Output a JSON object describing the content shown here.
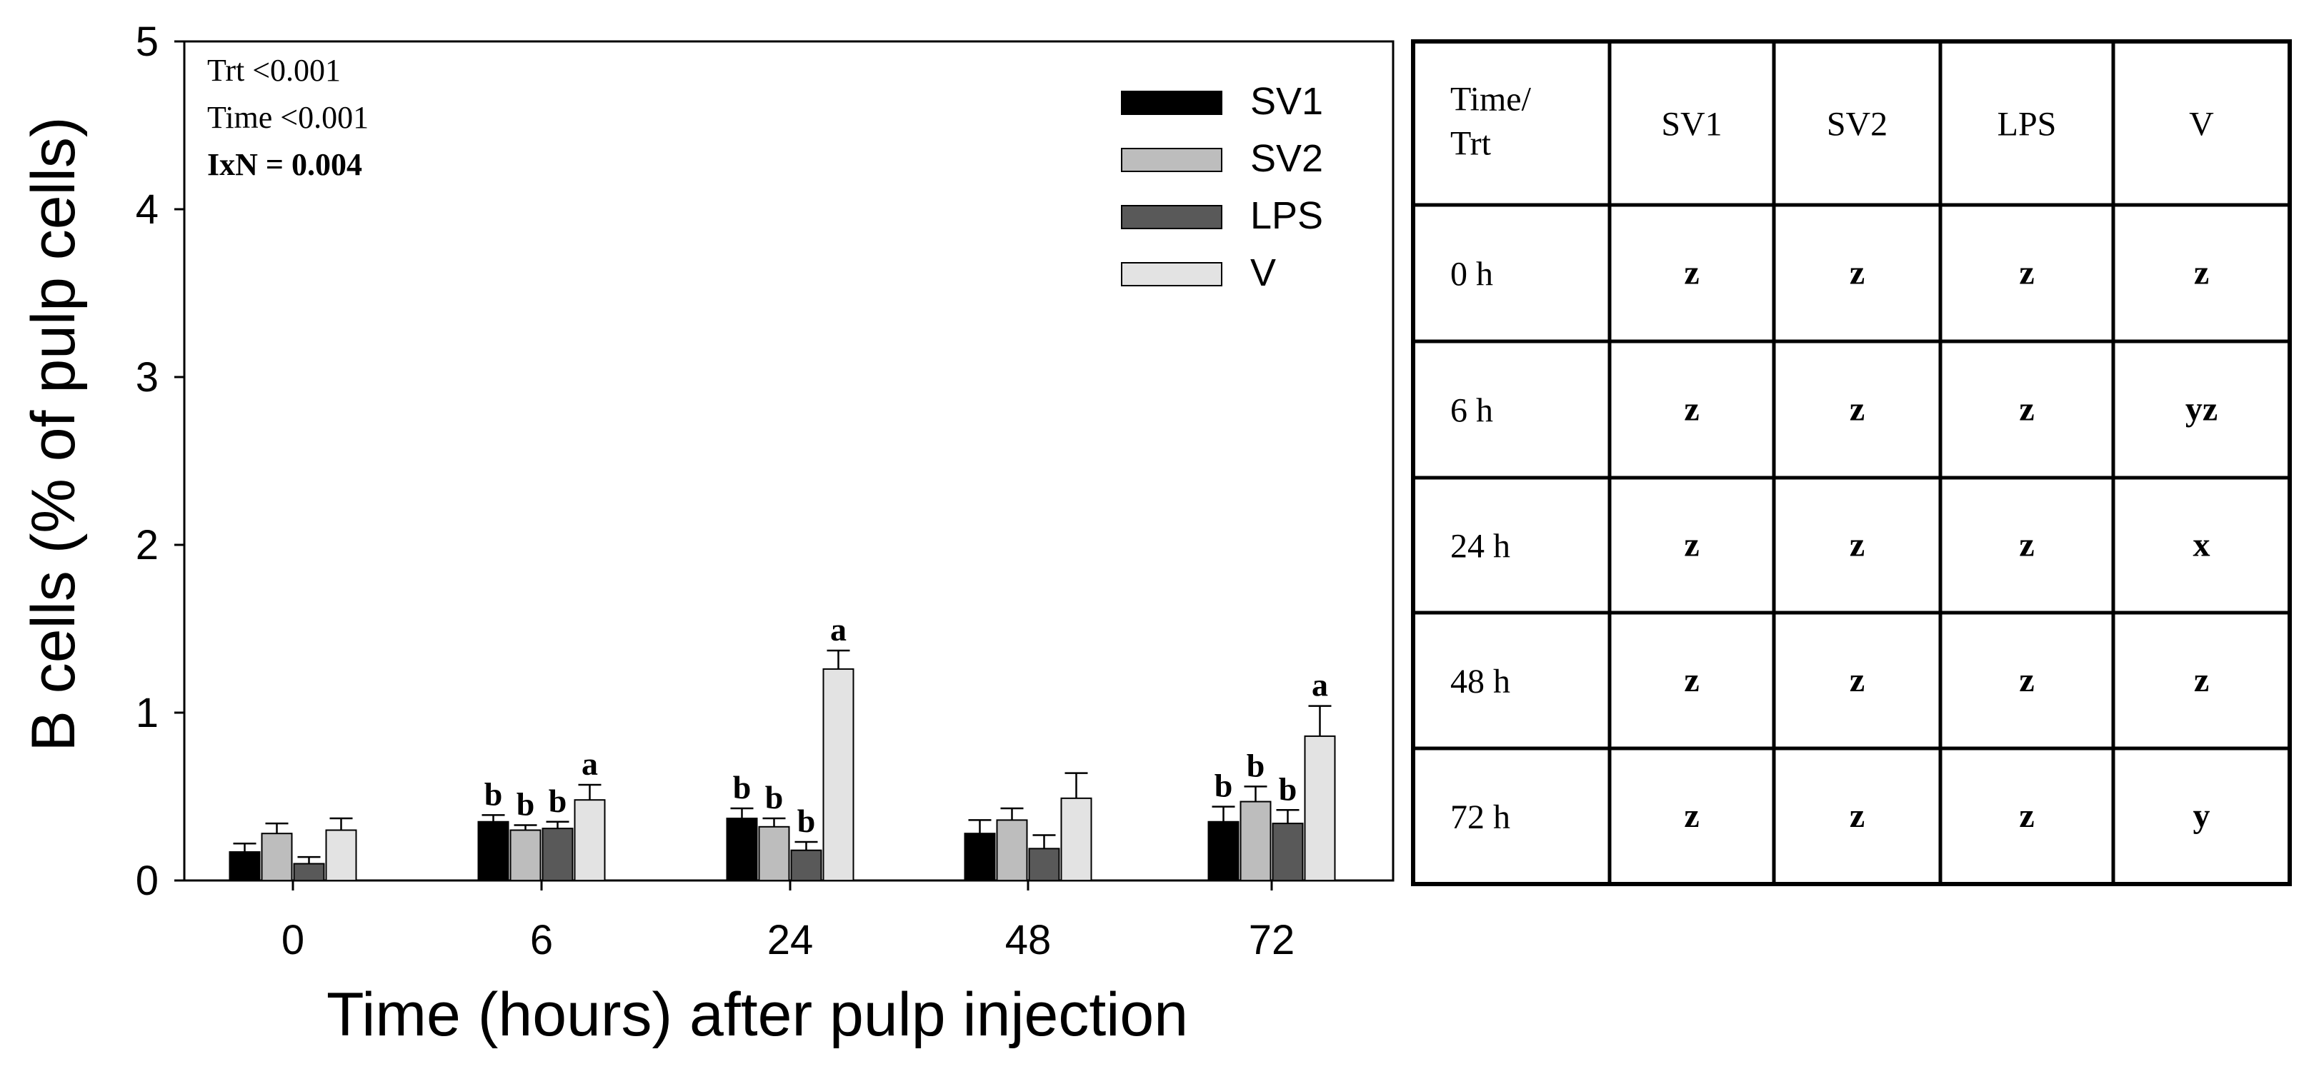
{
  "chart_data": {
    "type": "bar",
    "xlabel": "Time (hours) after pulp injection",
    "ylabel": "B cells (% of pulp cells)",
    "ylim": [
      0,
      5
    ],
    "yticks": [
      "0",
      "1",
      "2",
      "3",
      "4",
      "5"
    ],
    "categories": [
      "0",
      "6",
      "24",
      "48",
      "72"
    ],
    "series": [
      {
        "name": "SV1",
        "color": "#000000",
        "values": [
          0.17,
          0.35,
          0.37,
          0.28,
          0.35
        ],
        "errors": [
          0.05,
          0.04,
          0.06,
          0.08,
          0.09
        ],
        "letters": [
          "",
          "b",
          "b",
          "",
          "b"
        ]
      },
      {
        "name": "SV2",
        "color": "#bdbdbd",
        "values": [
          0.28,
          0.3,
          0.32,
          0.36,
          0.47
        ],
        "errors": [
          0.06,
          0.03,
          0.05,
          0.07,
          0.09
        ],
        "letters": [
          "",
          "b",
          "b",
          "",
          "b"
        ]
      },
      {
        "name": "LPS",
        "color": "#595959",
        "values": [
          0.1,
          0.31,
          0.18,
          0.19,
          0.34
        ],
        "errors": [
          0.04,
          0.04,
          0.05,
          0.08,
          0.08
        ],
        "letters": [
          "",
          "b",
          "b",
          "",
          "b"
        ]
      },
      {
        "name": "V",
        "color": "#e3e3e3",
        "values": [
          0.3,
          0.48,
          1.26,
          0.49,
          0.86
        ],
        "errors": [
          0.07,
          0.09,
          0.11,
          0.15,
          0.18
        ],
        "letters": [
          "",
          "a",
          "a",
          "",
          "a"
        ]
      }
    ],
    "stats": [
      "Trt <0.001",
      "Time <0.001",
      "IxN = 0.004"
    ],
    "legend_position": "top-right",
    "grid": false
  },
  "table": {
    "header": [
      "Time/\nTrt",
      "SV1",
      "SV2",
      "LPS",
      "V"
    ],
    "rows": [
      [
        "0 h",
        "z",
        "z",
        "z",
        "z"
      ],
      [
        "6 h",
        "z",
        "z",
        "z",
        "yz"
      ],
      [
        "24 h",
        "z",
        "z",
        "z",
        "x"
      ],
      [
        "48 h",
        "z",
        "z",
        "z",
        "z"
      ],
      [
        "72 h",
        "z",
        "z",
        "z",
        "y"
      ]
    ]
  }
}
